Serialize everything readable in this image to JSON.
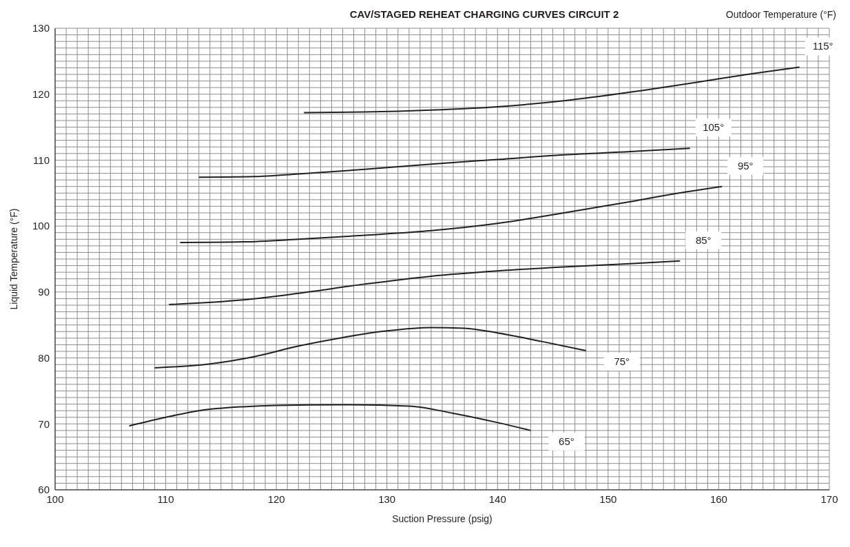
{
  "chart_data": {
    "type": "line",
    "title": "CAV/STAGED REHEAT CHARGING CURVES CIRCUIT 2",
    "legend_title": "Outdoor Temperature (°F)",
    "xlabel": "Suction Pressure (psig)",
    "ylabel": "Liquid  Temperature  (°F)",
    "xlim": [
      100,
      170
    ],
    "ylim": [
      60,
      130
    ],
    "xticks": [
      100,
      {
        "value": 101,
        "label": null
      },
      {
        "value": 102,
        "label": null
      },
      {
        "value": 103,
        "label": null
      },
      {
        "value": 104,
        "label": null
      },
      {
        "value": 105,
        "label": null
      },
      {
        "value": 106,
        "label": null
      },
      {
        "value": 107,
        "label": null
      },
      {
        "value": 108,
        "label": null
      },
      {
        "value": 109,
        "label": null
      },
      110,
      {
        "value": 111,
        "label": null
      },
      {
        "value": 112,
        "label": null
      },
      {
        "value": 113,
        "label": null
      },
      {
        "value": 114,
        "label": null
      },
      {
        "value": 115,
        "label": null
      },
      {
        "value": 116,
        "label": null
      },
      {
        "value": 117,
        "label": null
      },
      {
        "value": 118,
        "label": null
      },
      {
        "value": 119,
        "label": null
      },
      120,
      {
        "value": 121,
        "label": null
      },
      {
        "value": 122,
        "label": null
      },
      {
        "value": 123,
        "label": null
      },
      {
        "value": 124,
        "label": null
      },
      {
        "value": 125,
        "label": null
      },
      {
        "value": 126,
        "label": null
      },
      {
        "value": 127,
        "label": null
      },
      {
        "value": 128,
        "label": null
      },
      {
        "value": 129,
        "label": null
      },
      130,
      {
        "value": 131,
        "label": null
      },
      {
        "value": 132,
        "label": null
      },
      {
        "value": 133,
        "label": null
      },
      {
        "value": 134,
        "label": null
      },
      {
        "value": 135,
        "label": null
      },
      {
        "value": 136,
        "label": null
      },
      {
        "value": 137,
        "label": null
      },
      {
        "value": 138,
        "label": null
      },
      {
        "value": 139,
        "label": null
      },
      140,
      {
        "value": 141,
        "label": null
      },
      {
        "value": 142,
        "label": null
      },
      {
        "value": 143,
        "label": null
      },
      {
        "value": 144,
        "label": null
      },
      {
        "value": 145,
        "label": null
      },
      {
        "value": 146,
        "label": null
      },
      {
        "value": 147,
        "label": null
      },
      {
        "value": 148,
        "label": null
      },
      {
        "value": 149,
        "label": null
      },
      150,
      {
        "value": 151,
        "label": null
      },
      {
        "value": 152,
        "label": null
      },
      {
        "value": 153,
        "label": null
      },
      {
        "value": 154,
        "label": null
      },
      {
        "value": 155,
        "label": null
      },
      {
        "value": 156,
        "label": null
      },
      {
        "value": 157,
        "label": null
      },
      {
        "value": 158,
        "label": null
      },
      {
        "value": 159,
        "label": null
      },
      160,
      {
        "value": 161,
        "label": null
      },
      {
        "value": 162,
        "label": null
      },
      {
        "value": 163,
        "label": null
      },
      {
        "value": 164,
        "label": null
      },
      {
        "value": 165,
        "label": null
      },
      {
        "value": 166,
        "label": null
      },
      {
        "value": 167,
        "label": null
      },
      {
        "value": 168,
        "label": null
      },
      {
        "value": 169,
        "label": null
      },
      170
    ],
    "yticks": [
      60,
      {
        "value": 61,
        "label": null
      },
      {
        "value": 62,
        "label": null
      },
      {
        "value": 63,
        "label": null
      },
      {
        "value": 64,
        "label": null
      },
      {
        "value": 65,
        "label": null
      },
      {
        "value": 66,
        "label": null
      },
      {
        "value": 67,
        "label": null
      },
      {
        "value": 68,
        "label": null
      },
      {
        "value": 69,
        "label": null
      },
      70,
      {
        "value": 71,
        "label": null
      },
      {
        "value": 72,
        "label": null
      },
      {
        "value": 73,
        "label": null
      },
      {
        "value": 74,
        "label": null
      },
      {
        "value": 75,
        "label": null
      },
      {
        "value": 76,
        "label": null
      },
      {
        "value": 77,
        "label": null
      },
      {
        "value": 78,
        "label": null
      },
      {
        "value": 79,
        "label": null
      },
      80,
      {
        "value": 81,
        "label": null
      },
      {
        "value": 82,
        "label": null
      },
      {
        "value": 83,
        "label": null
      },
      {
        "value": 84,
        "label": null
      },
      {
        "value": 85,
        "label": null
      },
      {
        "value": 86,
        "label": null
      },
      {
        "value": 87,
        "label": null
      },
      {
        "value": 88,
        "label": null
      },
      {
        "value": 89,
        "label": null
      },
      90,
      {
        "value": 91,
        "label": null
      },
      {
        "value": 92,
        "label": null
      },
      {
        "value": 93,
        "label": null
      },
      {
        "value": 94,
        "label": null
      },
      {
        "value": 95,
        "label": null
      },
      {
        "value": 96,
        "label": null
      },
      {
        "value": 97,
        "label": null
      },
      {
        "value": 98,
        "label": null
      },
      {
        "value": 99,
        "label": null
      },
      100,
      {
        "value": 101,
        "label": null
      },
      {
        "value": 102,
        "label": null
      },
      {
        "value": 103,
        "label": null
      },
      {
        "value": 104,
        "label": null
      },
      {
        "value": 105,
        "label": null
      },
      {
        "value": 106,
        "label": null
      },
      {
        "value": 107,
        "label": null
      },
      {
        "value": 108,
        "label": null
      },
      {
        "value": 109,
        "label": null
      },
      110,
      {
        "value": 111,
        "label": null
      },
      {
        "value": 112,
        "label": null
      },
      {
        "value": 113,
        "label": null
      },
      {
        "value": 114,
        "label": null
      },
      {
        "value": 115,
        "label": null
      },
      {
        "value": 116,
        "label": null
      },
      {
        "value": 117,
        "label": null
      },
      {
        "value": 118,
        "label": null
      },
      {
        "value": 119,
        "label": null
      },
      120,
      {
        "value": 121,
        "label": null
      },
      {
        "value": 122,
        "label": null
      },
      {
        "value": 123,
        "label": null
      },
      {
        "value": 124,
        "label": null
      },
      {
        "value": 125,
        "label": null
      },
      {
        "value": 126,
        "label": null
      },
      {
        "value": 127,
        "label": null
      },
      {
        "value": 128,
        "label": null
      },
      {
        "value": 129,
        "label": null
      },
      130
    ],
    "grid": true,
    "marker": "none",
    "line_style": "solid",
    "series": [
      {
        "name": "65°",
        "color": "#231f20",
        "x": [
          106.7,
          110,
          113,
          117,
          120,
          126,
          132,
          136,
          140,
          143
        ],
        "values": [
          69.7,
          71,
          72,
          72.6,
          72.8,
          72.9,
          72.7,
          71.6,
          70.2,
          69
        ]
      },
      {
        "name": "75°",
        "color": "#231f20",
        "x": [
          109,
          114,
          118,
          122,
          126,
          130,
          134,
          137,
          140,
          144,
          148
        ],
        "values": [
          78.5,
          79.1,
          80.2,
          81.8,
          83.1,
          84.1,
          84.6,
          84.5,
          83.8,
          82.5,
          81.1
        ]
      },
      {
        "name": "85°",
        "color": "#231f20",
        "x": [
          110.3,
          117,
          122,
          128,
          134,
          140,
          146,
          152,
          156.5
        ],
        "values": [
          88.1,
          88.8,
          89.8,
          91.2,
          92.4,
          93.2,
          93.8,
          94.3,
          94.7
        ]
      },
      {
        "name": "95°",
        "color": "#231f20",
        "x": [
          111.3,
          117,
          122,
          128,
          134,
          140,
          146,
          152,
          156,
          160.3
        ],
        "values": [
          97.5,
          97.6,
          98,
          98.6,
          99.3,
          100.4,
          102,
          103.7,
          104.9,
          106
        ]
      },
      {
        "name": "105°",
        "color": "#231f20",
        "x": [
          113,
          118,
          122,
          128,
          134,
          140,
          146,
          152,
          157.4
        ],
        "values": [
          107.4,
          107.5,
          107.9,
          108.6,
          109.4,
          110.1,
          110.8,
          111.3,
          111.8
        ]
      },
      {
        "name": "115°",
        "color": "#231f20",
        "x": [
          122.5,
          128,
          134,
          140,
          146,
          152,
          158,
          163,
          167.3
        ],
        "values": [
          117.2,
          117.3,
          117.6,
          118.1,
          119,
          120.3,
          121.8,
          123.1,
          124.1
        ]
      }
    ]
  }
}
